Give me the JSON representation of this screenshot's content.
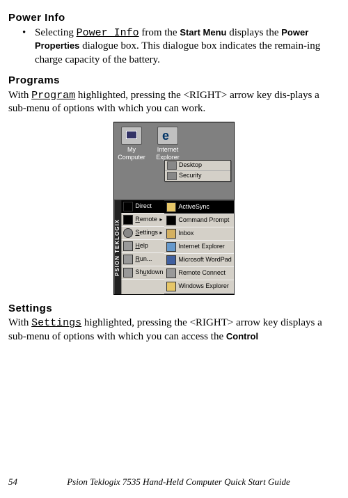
{
  "sections": {
    "power": {
      "heading": "Power Info",
      "bullet_prefix": "Selecting ",
      "bullet_mono": "Power Info",
      "bullet_mid1": " from the ",
      "bullet_sans1": "Start Menu",
      "bullet_mid2": " displays the ",
      "bullet_sans2": "Power Properties",
      "bullet_tail": " dialogue box. This dialogue box indicates the remain-ing charge capacity of the battery."
    },
    "programs": {
      "heading": "Programs",
      "p_prefix": "With ",
      "p_mono": "Program",
      "p_tail": " highlighted, pressing the <RIGHT> arrow key dis-plays a sub-menu of options with which you can work."
    },
    "settings": {
      "heading": "Settings",
      "p_prefix": "With ",
      "p_mono": "Settings",
      "p_tail": " highlighted, pressing the <RIGHT> arrow key displays a sub-menu of options with which you can access the ",
      "p_sans": "Control"
    }
  },
  "screenshot": {
    "desk": {
      "mycomputer": "My Computer",
      "ie": "Internet Explorer"
    },
    "float": {
      "desktop": "Desktop",
      "security": "Security"
    },
    "sidebar": "PSION TEKLOGIX",
    "left_items": {
      "direct": "Direct",
      "remote": "Remote",
      "settings": "Settings",
      "help": "Help",
      "run": "Run...",
      "shutdown": "Shutdown"
    },
    "right_items": {
      "activesync": "ActiveSync",
      "cmd": "Command Prompt",
      "inbox": "Inbox",
      "ie": "Internet Explorer",
      "wordpad": "Microsoft WordPad",
      "remote": "Remote Connect",
      "explorer": "Windows Explorer"
    }
  },
  "footer": {
    "page": "54",
    "text": "Psion Teklogix 7535 Hand-Held Computer Quick Start Guide"
  },
  "colors": {
    "desktop_bg": "#808080",
    "menu_bg": "#d4d0c8",
    "highlight_blue": "#0a246a",
    "highlight_black": "#000000"
  }
}
